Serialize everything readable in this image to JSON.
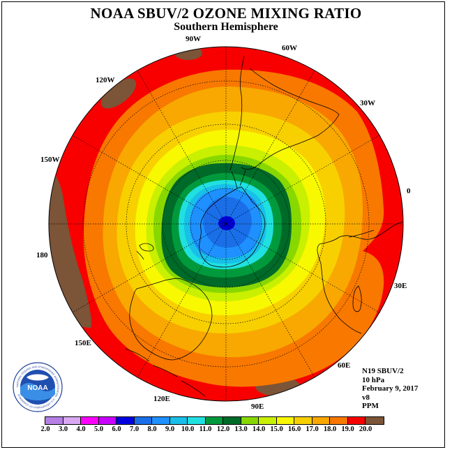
{
  "title": "NOAA SBUV/2 OZONE MIXING RATIO",
  "subtitle": "Southern Hemisphere",
  "longitude_labels": {
    "lon_90w": "90W",
    "lon_60w": "60W",
    "lon_30w": "30W",
    "lon_0": "0",
    "lon_30e": "30E",
    "lon_60e": "60E",
    "lon_90e": "90E",
    "lon_120e": "120E",
    "lon_150e": "150E",
    "lon_180": "180",
    "lon_150w": "150W",
    "lon_120w": "120W"
  },
  "info": {
    "satellite": "N19 SBUV/2",
    "level": "10 hPa",
    "date": "February 9, 2017",
    "version": "v8",
    "units": "PPM"
  },
  "logo": {
    "text": "NOAA",
    "ring_text": "NATIONAL OCEANIC AND ATMOSPHERIC ADMINISTRATION · U.S. DEPARTMENT OF COMMERCE"
  },
  "colorbar": {
    "ticks": [
      "2.0",
      "3.0",
      "4.0",
      "5.0",
      "6.0",
      "7.0",
      "8.0",
      "9.0",
      "10.0",
      "11.0",
      "12.0",
      "13.0",
      "14.0",
      "15.0",
      "16.0",
      "17.0",
      "18.0",
      "19.0",
      "20.0"
    ],
    "colors": [
      "#b57fe6",
      "#d8a9f2",
      "#ff00ff",
      "#c800ff",
      "#0000e0",
      "#1a6fe8",
      "#1e90ff",
      "#18bfe8",
      "#20e0e0",
      "#009a3c",
      "#006a28",
      "#88d800",
      "#c8f000",
      "#f8f800",
      "#f8d000",
      "#f8a800",
      "#f87800",
      "#f80000",
      "#7c5437"
    ]
  },
  "chart_data": {
    "type": "heatmap",
    "title": "NOAA SBUV/2 OZONE MIXING RATIO",
    "subtitle": "Southern Hemisphere",
    "projection": "polar stereographic, south pole centered",
    "quantity": "ozone mixing ratio",
    "units": "PPM",
    "pressure_level": "10 hPa",
    "date": "February 9, 2017",
    "color_scale_range": [
      2.0,
      20.0
    ],
    "color_scale_step": 1.0,
    "field_pattern": "minimum (~5-6 PPM) near the South Pole increasing outward to 18-19 PPM and >19 PPM near the equatorial edge",
    "contour_bands_ppm_from_pole_outward": [
      5,
      6,
      7,
      8,
      9,
      10,
      11,
      12,
      13,
      14,
      15,
      16,
      17,
      18,
      19
    ]
  }
}
